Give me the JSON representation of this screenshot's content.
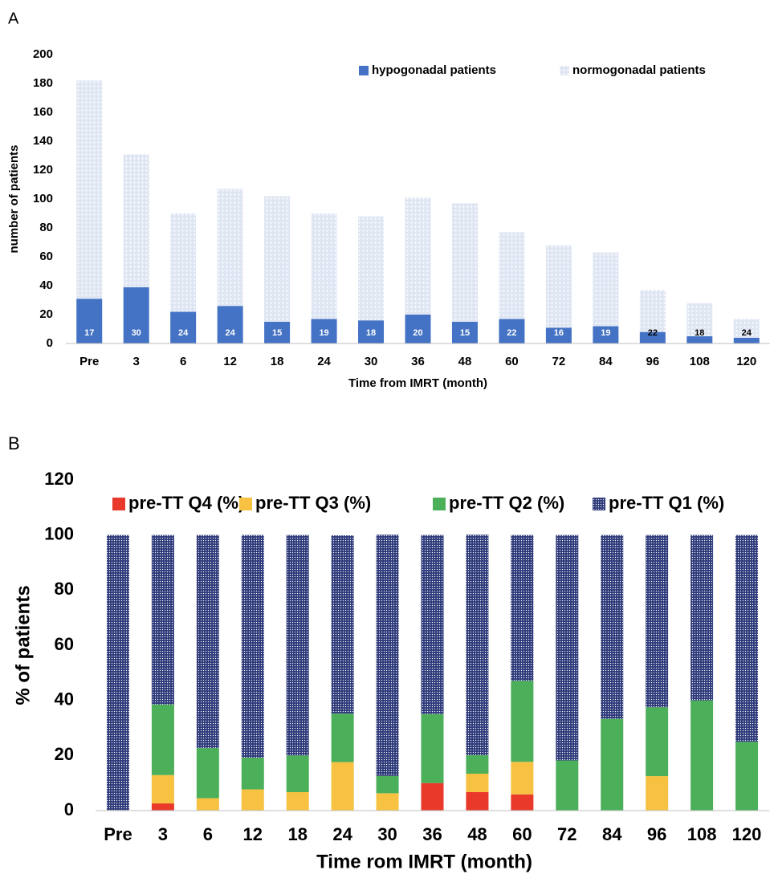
{
  "chart_data": [
    {
      "type": "bar",
      "stacked": true,
      "panel_label": "A",
      "categories": [
        "Pre",
        "3",
        "6",
        "12",
        "18",
        "24",
        "30",
        "36",
        "48",
        "60",
        "72",
        "84",
        "96",
        "108",
        "120"
      ],
      "series": [
        {
          "name": "hypogonadal patients",
          "color": "#4472c4",
          "values": [
            31,
            39,
            22,
            26,
            15,
            17,
            16,
            20,
            15,
            17,
            11,
            12,
            8,
            5,
            4
          ]
        },
        {
          "name": "normogonadal patients",
          "color": "#dfe6f3",
          "fill_pattern": "dots",
          "values": [
            151,
            92,
            68,
            81,
            87,
            73,
            72,
            81,
            82,
            60,
            57,
            51,
            29,
            23,
            13
          ]
        }
      ],
      "bar_labels": [
        17,
        30,
        24,
        24,
        15,
        19,
        18,
        20,
        15,
        22,
        16,
        19,
        22,
        18,
        24
      ],
      "xlabel": "Time from IMRT (month)",
      "ylabel": "number of patients",
      "ylim": [
        0,
        200
      ],
      "yticks": [
        0,
        20,
        40,
        60,
        80,
        100,
        120,
        140,
        160,
        180,
        200
      ],
      "grid": false,
      "legend": "top-right"
    },
    {
      "type": "bar",
      "stacked": true,
      "panel_label": "B",
      "categories": [
        "Pre",
        "3",
        "6",
        "12",
        "18",
        "24",
        "30",
        "36",
        "48",
        "60",
        "72",
        "84",
        "96",
        "108",
        "120"
      ],
      "series": [
        {
          "name": "pre-TT Q4 (%)",
          "color": "#e8392a",
          "values": [
            0,
            2.6,
            0,
            0,
            0,
            0,
            0,
            10,
            6.7,
            5.9,
            0,
            0,
            0,
            0,
            0
          ]
        },
        {
          "name": "pre-TT Q3 (%)",
          "color": "#f7c242",
          "values": [
            0,
            10.3,
            4.5,
            7.7,
            6.7,
            17.6,
            6.3,
            0,
            6.7,
            11.8,
            0,
            0,
            12.5,
            0,
            0
          ]
        },
        {
          "name": "pre-TT Q2 (%)",
          "color": "#4caf5a",
          "values": [
            0,
            25.6,
            18.2,
            11.5,
            13.3,
            17.6,
            6.3,
            25,
            6.7,
            29.4,
            18.2,
            33.3,
            25,
            40,
            25
          ]
        },
        {
          "name": "pre-TT Q1 (%)",
          "color": "#2e3a7a",
          "fill_pattern": "dots",
          "values": [
            100,
            61.5,
            77.3,
            80.8,
            80,
            64.7,
            87.5,
            65,
            80,
            52.9,
            81.8,
            66.7,
            62.5,
            60,
            75
          ]
        }
      ],
      "xlabel": "Time rom IMRT (month)",
      "ylabel": "% of patients",
      "ylim": [
        0,
        120
      ],
      "yticks": [
        0,
        20,
        40,
        60,
        80,
        100,
        120
      ],
      "grid": false,
      "legend": "top"
    }
  ]
}
